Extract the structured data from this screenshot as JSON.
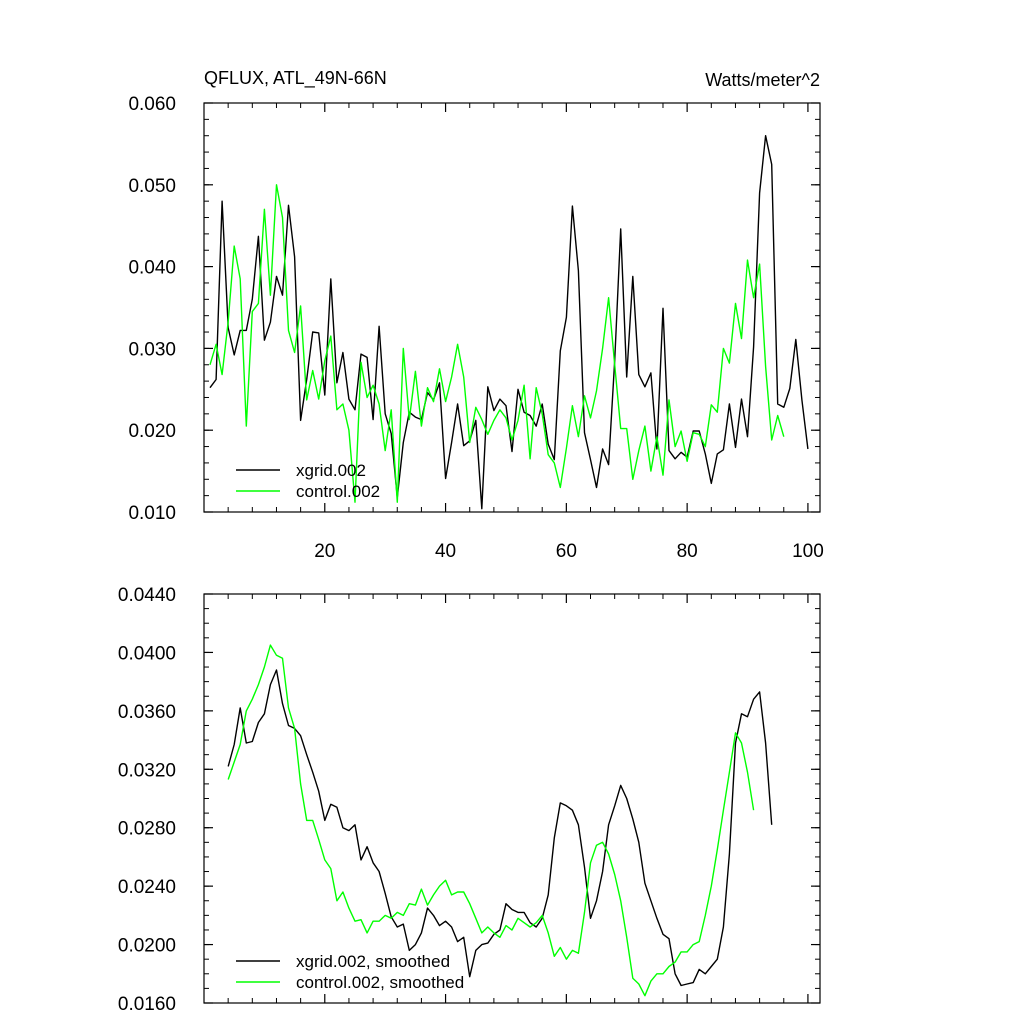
{
  "chart_data": [
    {
      "type": "line",
      "title": "QFLUX, ATL_49N-66N",
      "units": "Watts/meter^2",
      "xlim": [
        0,
        102
      ],
      "ylim": [
        0.01,
        0.06
      ],
      "xticks": [
        20,
        40,
        60,
        80,
        100
      ],
      "xtick_labels": [
        "20",
        "40",
        "60",
        "80",
        "100"
      ],
      "yticks": [
        0.01,
        0.02,
        0.03,
        0.04,
        0.05,
        0.06
      ],
      "ytick_labels": [
        "0.010",
        "0.020",
        "0.030",
        "0.040",
        "0.050",
        "0.060"
      ],
      "legend_position": "bottom-left",
      "x_start": 1,
      "series": [
        {
          "name": "xgrid.002",
          "color": "#000000",
          "values": [
            0.0252,
            0.0262,
            0.048,
            0.0325,
            0.0292,
            0.0322,
            0.0322,
            0.036,
            0.0437,
            0.031,
            0.0332,
            0.0388,
            0.0365,
            0.0475,
            0.0412,
            0.0212,
            0.0262,
            0.032,
            0.0319,
            0.0243,
            0.0385,
            0.0258,
            0.0295,
            0.0238,
            0.0225,
            0.0293,
            0.0289,
            0.0213,
            0.0327,
            0.022,
            0.0196,
            0.0118,
            0.0185,
            0.0222,
            0.0216,
            0.0213,
            0.0246,
            0.0237,
            0.0258,
            0.0141,
            0.0185,
            0.0232,
            0.0181,
            0.0187,
            0.0212,
            0.0104,
            0.0253,
            0.0224,
            0.0238,
            0.023,
            0.0174,
            0.025,
            0.0222,
            0.0218,
            0.0205,
            0.0232,
            0.0183,
            0.0164,
            0.0297,
            0.0338,
            0.0474,
            0.0395,
            0.0197,
            0.0164,
            0.013,
            0.0177,
            0.0158,
            0.0285,
            0.0446,
            0.0265,
            0.0388,
            0.0268,
            0.0253,
            0.027,
            0.0177,
            0.0349,
            0.0175,
            0.0165,
            0.0173,
            0.0167,
            0.0199,
            0.0199,
            0.0171,
            0.0135,
            0.0171,
            0.0176,
            0.0232,
            0.0179,
            0.0238,
            0.0192,
            0.0302,
            0.049,
            0.056,
            0.0525,
            0.0232,
            0.0228,
            0.0251,
            0.0311,
            0.0237,
            0.0177
          ]
        },
        {
          "name": "control.002",
          "color": "#00ff00",
          "values": [
            0.028,
            0.0305,
            0.0268,
            0.0333,
            0.0425,
            0.0385,
            0.0205,
            0.0345,
            0.0355,
            0.047,
            0.0365,
            0.05,
            0.046,
            0.0322,
            0.0295,
            0.0352,
            0.0237,
            0.0273,
            0.0238,
            0.0285,
            0.0315,
            0.0225,
            0.0232,
            0.02,
            0.0112,
            0.0283,
            0.024,
            0.0255,
            0.0232,
            0.0175,
            0.0225,
            0.0112,
            0.03,
            0.0213,
            0.0272,
            0.0205,
            0.0252,
            0.0235,
            0.0275,
            0.0235,
            0.0265,
            0.0305,
            0.0265,
            0.0185,
            0.0228,
            0.0213,
            0.0195,
            0.0212,
            0.0225,
            0.0215,
            0.0188,
            0.0212,
            0.0255,
            0.0165,
            0.0252,
            0.022,
            0.017,
            0.016,
            0.013,
            0.0178,
            0.023,
            0.0192,
            0.0242,
            0.0215,
            0.0248,
            0.03,
            0.0362,
            0.028,
            0.0202,
            0.0202,
            0.014,
            0.0175,
            0.0205,
            0.015,
            0.0192,
            0.0145,
            0.0237,
            0.018,
            0.0199,
            0.0162,
            0.0197,
            0.0195,
            0.018,
            0.0231,
            0.0222,
            0.03,
            0.0282,
            0.0355,
            0.0312,
            0.0408,
            0.0362,
            0.0403,
            0.0278,
            0.0188,
            0.0218,
            0.0192
          ]
        }
      ]
    },
    {
      "type": "line",
      "xlim": [
        0,
        102
      ],
      "ylim": [
        0.016,
        0.044
      ],
      "xticks": [
        20,
        40,
        60,
        80,
        100
      ],
      "yticks": [
        0.016,
        0.02,
        0.024,
        0.028,
        0.032,
        0.036,
        0.04,
        0.044
      ],
      "ytick_labels": [
        "0.0160",
        "0.0200",
        "0.0240",
        "0.0280",
        "0.0320",
        "0.0360",
        "0.0400",
        "0.0440"
      ],
      "legend_position": "bottom-left",
      "x_start": 4,
      "series": [
        {
          "name": "xgrid.002, smoothed",
          "color": "#000000",
          "values": [
            0.0322,
            0.0337,
            0.0362,
            0.0338,
            0.0339,
            0.0352,
            0.0358,
            0.0378,
            0.0388,
            0.0365,
            0.035,
            0.0348,
            0.0343,
            0.033,
            0.0318,
            0.0305,
            0.0285,
            0.0296,
            0.0294,
            0.028,
            0.0278,
            0.0282,
            0.0258,
            0.0267,
            0.0256,
            0.025,
            0.0235,
            0.0219,
            0.0212,
            0.0214,
            0.0196,
            0.02,
            0.0208,
            0.0225,
            0.022,
            0.0213,
            0.0216,
            0.0212,
            0.0202,
            0.0205,
            0.0178,
            0.0196,
            0.02,
            0.0201,
            0.0207,
            0.021,
            0.0228,
            0.0224,
            0.0222,
            0.0222,
            0.0215,
            0.0212,
            0.0218,
            0.0234,
            0.0273,
            0.0297,
            0.0295,
            0.0292,
            0.0282,
            0.0253,
            0.0218,
            0.023,
            0.025,
            0.0282,
            0.0295,
            0.0309,
            0.03,
            0.0286,
            0.027,
            0.0242,
            0.023,
            0.0218,
            0.0207,
            0.0204,
            0.018,
            0.0172,
            0.0173,
            0.0174,
            0.0183,
            0.018,
            0.0185,
            0.019,
            0.0212,
            0.0262,
            0.0338,
            0.0358,
            0.0356,
            0.0368,
            0.0373,
            0.0338,
            0.0282
          ]
        },
        {
          "name": "control.002, smoothed",
          "color": "#00ff00",
          "values": [
            0.0313,
            0.0325,
            0.0337,
            0.036,
            0.0368,
            0.0378,
            0.039,
            0.0405,
            0.0398,
            0.0396,
            0.0362,
            0.0348,
            0.031,
            0.0285,
            0.0285,
            0.0272,
            0.0258,
            0.0252,
            0.023,
            0.0236,
            0.0225,
            0.0216,
            0.0217,
            0.0208,
            0.0216,
            0.0216,
            0.022,
            0.0218,
            0.0222,
            0.022,
            0.0228,
            0.0227,
            0.0238,
            0.0227,
            0.0234,
            0.024,
            0.0244,
            0.0234,
            0.0236,
            0.0236,
            0.0228,
            0.0218,
            0.0208,
            0.0212,
            0.0208,
            0.0205,
            0.0213,
            0.021,
            0.0218,
            0.0215,
            0.0212,
            0.0215,
            0.022,
            0.0208,
            0.0192,
            0.0198,
            0.019,
            0.0196,
            0.0194,
            0.0222,
            0.0256,
            0.0268,
            0.027,
            0.0262,
            0.0248,
            0.023,
            0.0205,
            0.0177,
            0.0173,
            0.0165,
            0.0175,
            0.018,
            0.018,
            0.0185,
            0.0188,
            0.0195,
            0.0195,
            0.02,
            0.0202,
            0.022,
            0.024,
            0.0265,
            0.0292,
            0.0318,
            0.0345,
            0.0338,
            0.0318,
            0.0292
          ]
        }
      ]
    }
  ]
}
